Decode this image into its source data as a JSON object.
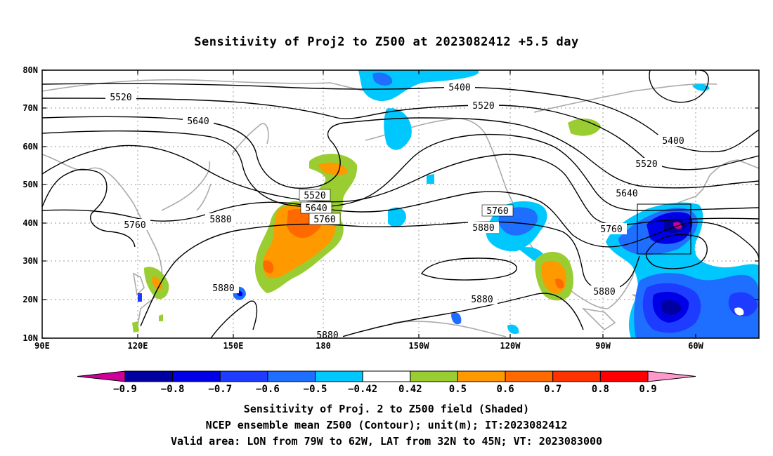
{
  "title": "Sensitivity of Proj2 to Z500 at 2023082412 +5.5 day",
  "y_axis_labels": [
    "80N",
    "70N",
    "60N",
    "50N",
    "40N",
    "30N",
    "20N",
    "10N"
  ],
  "x_axis_labels": [
    "90E",
    "120E",
    "150E",
    "180",
    "150W",
    "120W",
    "90W",
    "60W"
  ],
  "contour_labels": [
    "5520",
    "5640",
    "5760",
    "5880",
    "5400",
    "5520",
    "5520",
    "5640",
    "5760",
    "5760",
    "5880",
    "5400",
    "5520",
    "5640",
    "5760",
    "5880",
    "5880",
    "5880",
    "5880"
  ],
  "colorbar": {
    "tick_labels": [
      "-0.9",
      "-0.8",
      "-0.7",
      "-0.6",
      "-0.5",
      "-0.42",
      "0.42",
      "0.5",
      "0.6",
      "0.7",
      "0.8",
      "0.9"
    ],
    "colors": [
      "#cc0099",
      "#0000a0",
      "#0000e6",
      "#1e3cff",
      "#1e6eff",
      "#00c8ff",
      "#ffffff",
      "#9acd32",
      "#ff9900",
      "#ff6a00",
      "#ff3300",
      "#ff0000",
      "#ff99cc"
    ]
  },
  "valid_area_box": "LON 79W-62W, LAT 32N-45N",
  "captions": [
    "Sensitivity of Proj. 2 to Z500 field (Shaded)",
    "NCEP ensemble mean Z500 (Contour); unit(m); IT:2023082412",
    "Valid area: LON from 79W to 62W, LAT from 32N to 45N; VT: 2023083000"
  ]
}
